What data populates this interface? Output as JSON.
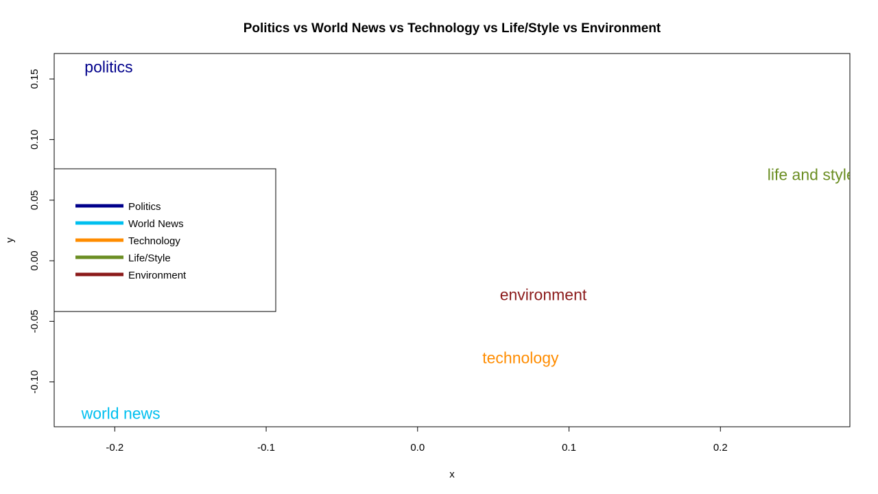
{
  "chart_data": {
    "type": "scatter",
    "title": "Politics vs World News vs Technology vs Life/Style vs Environment",
    "xlabel": "x",
    "ylabel": "y",
    "xlim": [
      -0.24,
      0.2855
    ],
    "ylim": [
      -0.137,
      0.171
    ],
    "x_ticks": [
      {
        "value": -0.2,
        "label": "-0.2"
      },
      {
        "value": -0.1,
        "label": "-0.1"
      },
      {
        "value": 0.0,
        "label": "0.0"
      },
      {
        "value": 0.1,
        "label": "0.1"
      },
      {
        "value": 0.2,
        "label": "0.2"
      }
    ],
    "y_ticks": [
      {
        "value": -0.1,
        "label": "-0.10"
      },
      {
        "value": -0.05,
        "label": "-0.05"
      },
      {
        "value": 0.0,
        "label": "0.00"
      },
      {
        "value": 0.05,
        "label": "0.05"
      },
      {
        "value": 0.1,
        "label": "0.10"
      },
      {
        "value": 0.15,
        "label": "0.15"
      }
    ],
    "grid": false,
    "points": [
      {
        "label": "politics",
        "x": -0.204,
        "y": 0.16,
        "color": "#00008B"
      },
      {
        "label": "world news",
        "x": -0.196,
        "y": -0.126,
        "color": "#00BFEF"
      },
      {
        "label": "technology",
        "x": 0.068,
        "y": -0.08,
        "color": "#FF8C00"
      },
      {
        "label": "life and style",
        "x": 0.26,
        "y": 0.071,
        "color": "#6B8E23"
      },
      {
        "label": "environment",
        "x": 0.083,
        "y": -0.028,
        "color": "#8B1A1A"
      }
    ],
    "legend": {
      "placement": "left",
      "entries": [
        {
          "label": "Politics",
          "color": "#00008B"
        },
        {
          "label": "World News",
          "color": "#00BFEF"
        },
        {
          "label": "Technology",
          "color": "#FF8C00"
        },
        {
          "label": "Life/Style",
          "color": "#6B8E23"
        },
        {
          "label": "Environment",
          "color": "#8B1A1A"
        }
      ]
    }
  }
}
